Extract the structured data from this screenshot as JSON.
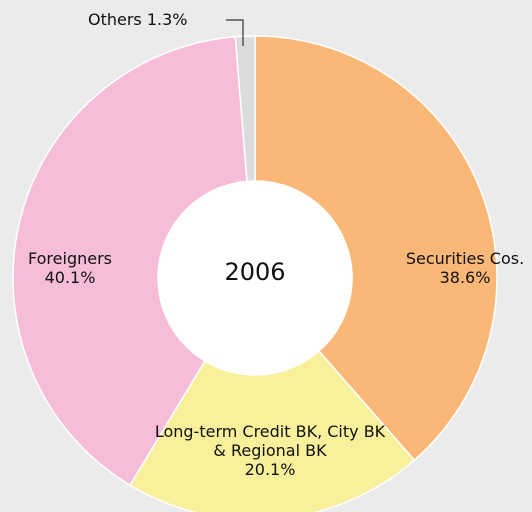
{
  "chart_data": {
    "type": "donut",
    "center_label": "2006",
    "categories": [
      "Securities Cos.",
      "Long-term Credit BK, City BK & Regional BK",
      "Foreigners",
      "Others"
    ],
    "values": [
      38.6,
      20.1,
      40.1,
      1.3
    ],
    "value_labels": [
      "38.6%",
      "20.1%",
      "40.1%",
      "1.3%"
    ],
    "colors": [
      "#f9b877",
      "#f8f09b",
      "#f5bdd8",
      "#dcdcdc"
    ]
  }
}
